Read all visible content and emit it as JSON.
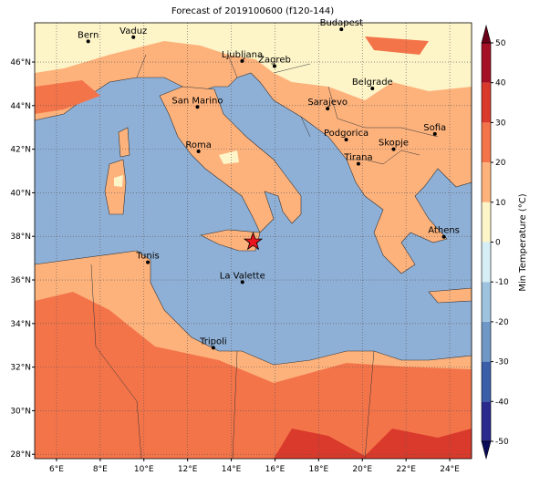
{
  "title": "Forecast of 2019100600 (f120-144)",
  "map": {
    "lonlim": [
      5,
      25
    ],
    "latlim": [
      27.8,
      47.8
    ],
    "grid": true,
    "lonticks": [
      {
        "value": 6,
        "label": "6°E"
      },
      {
        "value": 8,
        "label": "8°E"
      },
      {
        "value": 10,
        "label": "10°E"
      },
      {
        "value": 12,
        "label": "12°E"
      },
      {
        "value": 14,
        "label": "14°E"
      },
      {
        "value": 16,
        "label": "16°E"
      },
      {
        "value": 18,
        "label": "18°E"
      },
      {
        "value": 20,
        "label": "20°E"
      },
      {
        "value": 22,
        "label": "22°E"
      },
      {
        "value": 24,
        "label": "24°E"
      }
    ],
    "latticks": [
      {
        "value": 28,
        "label": "28°N"
      },
      {
        "value": 30,
        "label": "30°N"
      },
      {
        "value": 32,
        "label": "32°N"
      },
      {
        "value": 34,
        "label": "34°N"
      },
      {
        "value": 36,
        "label": "36°N"
      },
      {
        "value": 38,
        "label": "38°N"
      },
      {
        "value": 40,
        "label": "40°N"
      },
      {
        "value": 42,
        "label": "42°N"
      },
      {
        "value": 44,
        "label": "44°N"
      },
      {
        "value": 46,
        "label": "46°N"
      }
    ],
    "cities": [
      {
        "name": "Bern",
        "lon": 7.45,
        "lat": 46.95
      },
      {
        "name": "Vaduz",
        "lon": 9.52,
        "lat": 47.14
      },
      {
        "name": "Budapest",
        "lon": 19.04,
        "lat": 47.5
      },
      {
        "name": "Ljubljana",
        "lon": 14.5,
        "lat": 46.05
      },
      {
        "name": "Zagreb",
        "lon": 15.98,
        "lat": 45.81
      },
      {
        "name": "Belgrade",
        "lon": 20.46,
        "lat": 44.79
      },
      {
        "name": "San Marino",
        "lon": 12.45,
        "lat": 43.94
      },
      {
        "name": "Sarajevo",
        "lon": 18.41,
        "lat": 43.86
      },
      {
        "name": "Sofia",
        "lon": 23.32,
        "lat": 42.7
      },
      {
        "name": "Podgorica",
        "lon": 19.26,
        "lat": 42.44
      },
      {
        "name": "Skopje",
        "lon": 21.43,
        "lat": 42.0
      },
      {
        "name": "Roma",
        "lon": 12.5,
        "lat": 41.9
      },
      {
        "name": "Tirana",
        "lon": 19.82,
        "lat": 41.33
      },
      {
        "name": "Athens",
        "lon": 23.73,
        "lat": 37.98
      },
      {
        "name": "Tunis",
        "lon": 10.18,
        "lat": 36.81
      },
      {
        "name": "La Valette",
        "lon": 14.51,
        "lat": 35.9
      },
      {
        "name": "Tripoli",
        "lon": 13.18,
        "lat": 32.89
      }
    ],
    "marker": {
      "lon": 15.0,
      "lat": 37.75,
      "color": "#e8141e"
    }
  },
  "colorbar": {
    "label": "Min Temperature (°C)",
    "lim": [
      -50,
      50
    ],
    "ticks": [
      -50,
      -40,
      -30,
      -20,
      -10,
      0,
      10,
      20,
      30,
      40,
      50
    ],
    "colors": [
      "#2a2a8e",
      "#3a5fa8",
      "#6f98c6",
      "#9ec3df",
      "#d6eef5",
      "#fdf5c8",
      "#fdb27c",
      "#f4744a",
      "#d93a2b",
      "#a50f26"
    ],
    "extend_colors": [
      "#0a0a5a",
      "#6b0019"
    ]
  }
}
